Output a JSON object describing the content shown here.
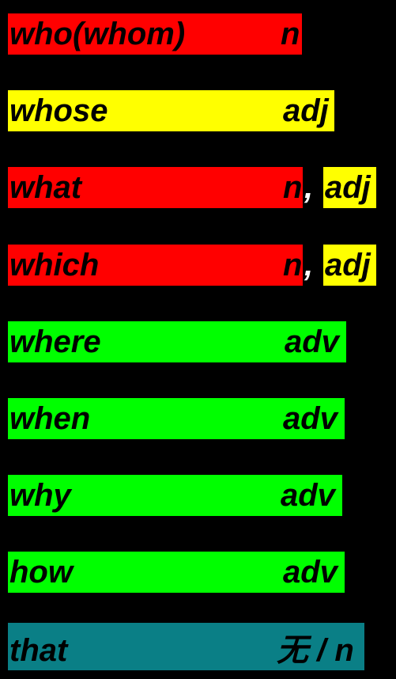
{
  "colors": {
    "background": "#000000",
    "red": "#ff0000",
    "yellow": "#ffff00",
    "green": "#00ff00",
    "teal": "#0a7f86"
  },
  "rows": [
    {
      "word": "who(whom)",
      "pos": "n"
    },
    {
      "word": "whose",
      "pos": "adj"
    },
    {
      "word": "what",
      "pos": "n",
      "comma": ",",
      "extra": "adj"
    },
    {
      "word": "which",
      "pos": "n",
      "comma": ",",
      "extra": "adj"
    },
    {
      "word": "where",
      "pos": "adv"
    },
    {
      "word": "when",
      "pos": "adv"
    },
    {
      "word": "why",
      "pos": "adv"
    },
    {
      "word": "how",
      "pos": "adv"
    },
    {
      "word": "that",
      "pos": "无 / n"
    }
  ]
}
